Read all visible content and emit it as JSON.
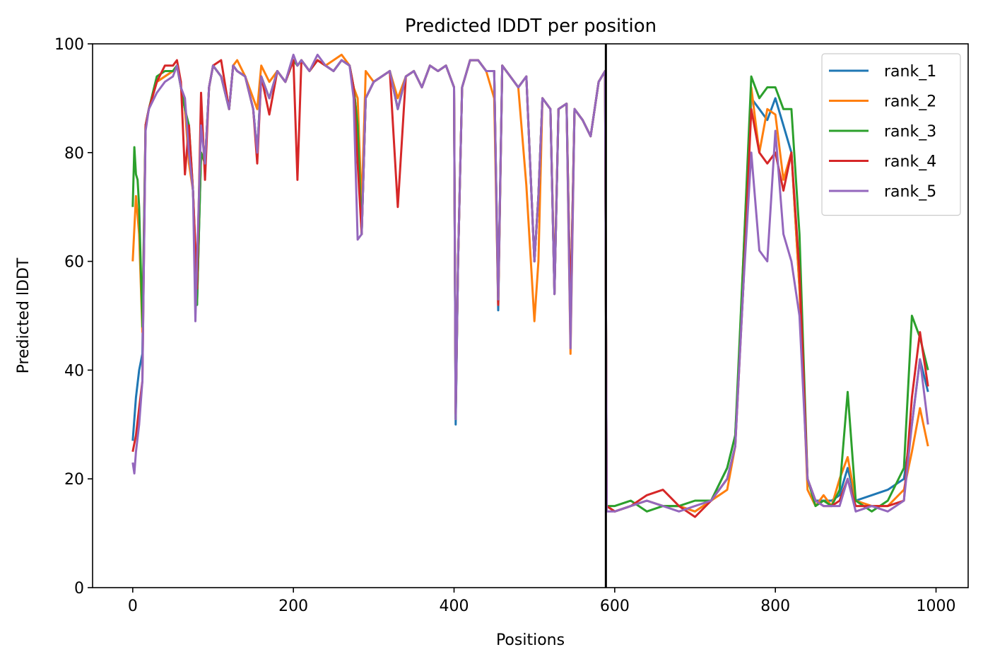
{
  "chart_data": {
    "type": "line",
    "title": "Predicted lDDT per position",
    "xlabel": "Positions",
    "ylabel": "Predicted lDDT",
    "xlim": [
      -50,
      1040
    ],
    "ylim": [
      0,
      100
    ],
    "xticks": [
      0,
      200,
      400,
      600,
      800,
      1000
    ],
    "yticks": [
      0,
      20,
      40,
      60,
      80,
      100
    ],
    "grid": false,
    "legend_position": "top-right",
    "chain_break": 589,
    "chain_break_color": "#000000",
    "series": [
      {
        "name": "rank_1",
        "color": "#1f77b4",
        "x": [
          0,
          4,
          8,
          12,
          16,
          20,
          30,
          40,
          50,
          55,
          60,
          65,
          70,
          75,
          80,
          85,
          90,
          95,
          100,
          110,
          120,
          125,
          130,
          140,
          150,
          155,
          160,
          170,
          180,
          190,
          200,
          205,
          210,
          220,
          230,
          240,
          250,
          260,
          270,
          275,
          280,
          285,
          290,
          300,
          310,
          320,
          330,
          340,
          350,
          360,
          370,
          380,
          390,
          400,
          402,
          405,
          410,
          420,
          430,
          440,
          450,
          455,
          460,
          470,
          480,
          490,
          500,
          505,
          510,
          520,
          525,
          530,
          540,
          545,
          550,
          560,
          570,
          580,
          588,
          590,
          600,
          620,
          640,
          660,
          680,
          700,
          720,
          740,
          750,
          760,
          770,
          780,
          790,
          800,
          810,
          820,
          830,
          840,
          850,
          860,
          870,
          880,
          890,
          900,
          920,
          940,
          960,
          970,
          980,
          990
        ],
        "values": [
          27,
          35,
          40,
          43,
          85,
          88,
          93,
          94,
          95,
          96,
          92,
          88,
          80,
          73,
          52,
          80,
          78,
          92,
          96,
          94,
          88,
          96,
          95,
          94,
          88,
          80,
          94,
          90,
          95,
          93,
          97,
          96,
          97,
          95,
          97,
          96,
          95,
          97,
          96,
          92,
          85,
          65,
          90,
          93,
          94,
          95,
          88,
          94,
          95,
          92,
          96,
          95,
          96,
          92,
          30,
          60,
          92,
          97,
          97,
          95,
          95,
          51,
          96,
          94,
          92,
          94,
          60,
          72,
          90,
          88,
          54,
          88,
          89,
          50,
          88,
          86,
          83,
          93,
          95,
          15,
          14,
          15,
          16,
          15,
          15,
          14,
          16,
          22,
          28,
          55,
          90,
          88,
          86,
          90,
          85,
          80,
          55,
          20,
          16,
          16,
          16,
          17,
          22,
          16,
          17,
          18,
          20,
          30,
          42,
          36
        ]
      },
      {
        "name": "rank_2",
        "color": "#ff7f0e",
        "x": [
          0,
          4,
          8,
          12,
          16,
          20,
          30,
          40,
          50,
          55,
          60,
          65,
          70,
          75,
          80,
          85,
          90,
          95,
          100,
          110,
          120,
          125,
          130,
          140,
          150,
          155,
          160,
          170,
          180,
          190,
          200,
          205,
          210,
          220,
          230,
          240,
          250,
          260,
          270,
          275,
          280,
          285,
          290,
          300,
          310,
          320,
          330,
          340,
          350,
          360,
          370,
          380,
          390,
          400,
          402,
          405,
          410,
          420,
          430,
          440,
          450,
          455,
          460,
          470,
          480,
          490,
          500,
          505,
          510,
          520,
          525,
          530,
          540,
          545,
          550,
          560,
          570,
          580,
          588,
          590,
          600,
          620,
          640,
          660,
          680,
          700,
          720,
          740,
          750,
          760,
          770,
          780,
          790,
          800,
          810,
          820,
          830,
          840,
          850,
          860,
          870,
          880,
          890,
          900,
          920,
          940,
          960,
          970,
          980,
          990
        ],
        "values": [
          60,
          72,
          65,
          47,
          85,
          88,
          93,
          94,
          95,
          96,
          92,
          88,
          78,
          73,
          55,
          80,
          78,
          92,
          96,
          94,
          88,
          96,
          97,
          94,
          90,
          88,
          96,
          93,
          95,
          93,
          97,
          96,
          97,
          95,
          97,
          96,
          97,
          98,
          96,
          92,
          90,
          70,
          95,
          93,
          94,
          95,
          90,
          94,
          95,
          92,
          96,
          95,
          96,
          92,
          32,
          60,
          92,
          97,
          97,
          95,
          90,
          52,
          96,
          94,
          92,
          74,
          49,
          60,
          90,
          88,
          56,
          88,
          89,
          43,
          88,
          86,
          83,
          93,
          95,
          15,
          14,
          15,
          16,
          15,
          15,
          14,
          16,
          18,
          26,
          60,
          92,
          80,
          88,
          87,
          75,
          80,
          55,
          18,
          15,
          17,
          15,
          20,
          24,
          16,
          15,
          15,
          18,
          25,
          33,
          26
        ]
      },
      {
        "name": "rank_3",
        "color": "#2ca02c",
        "x": [
          0,
          2,
          4,
          6,
          8,
          12,
          16,
          20,
          30,
          40,
          50,
          55,
          60,
          65,
          70,
          75,
          80,
          85,
          90,
          95,
          100,
          110,
          120,
          125,
          130,
          140,
          150,
          155,
          160,
          170,
          180,
          190,
          200,
          205,
          210,
          220,
          230,
          240,
          250,
          260,
          270,
          275,
          280,
          285,
          290,
          300,
          310,
          320,
          330,
          340,
          350,
          360,
          370,
          380,
          390,
          400,
          402,
          405,
          410,
          420,
          430,
          440,
          450,
          455,
          460,
          470,
          480,
          490,
          500,
          505,
          510,
          520,
          525,
          530,
          540,
          545,
          550,
          560,
          570,
          580,
          588,
          590,
          600,
          620,
          640,
          660,
          680,
          700,
          720,
          740,
          750,
          760,
          770,
          780,
          790,
          800,
          810,
          820,
          830,
          840,
          850,
          860,
          870,
          880,
          890,
          900,
          920,
          940,
          960,
          970,
          980,
          990
        ],
        "values": [
          70,
          81,
          76,
          75,
          70,
          48,
          85,
          88,
          94,
          95,
          95,
          96,
          92,
          88,
          85,
          73,
          52,
          80,
          78,
          92,
          96,
          94,
          88,
          96,
          95,
          94,
          88,
          80,
          94,
          90,
          95,
          93,
          97,
          96,
          97,
          95,
          97,
          96,
          95,
          97,
          96,
          92,
          85,
          65,
          90,
          93,
          94,
          95,
          88,
          94,
          95,
          92,
          96,
          95,
          96,
          92,
          31,
          60,
          92,
          97,
          97,
          95,
          95,
          53,
          96,
          94,
          92,
          94,
          60,
          72,
          90,
          88,
          54,
          88,
          89,
          50,
          88,
          86,
          83,
          93,
          95,
          15,
          15,
          16,
          14,
          15,
          15,
          16,
          16,
          22,
          28,
          60,
          94,
          90,
          92,
          92,
          88,
          88,
          65,
          20,
          15,
          16,
          15,
          18,
          36,
          16,
          14,
          16,
          22,
          50,
          46,
          40
        ]
      },
      {
        "name": "rank_4",
        "color": "#d62728",
        "x": [
          0,
          4,
          8,
          12,
          16,
          20,
          30,
          40,
          50,
          55,
          60,
          65,
          70,
          75,
          80,
          85,
          90,
          95,
          100,
          110,
          120,
          125,
          130,
          140,
          150,
          155,
          160,
          170,
          180,
          190,
          200,
          205,
          210,
          220,
          230,
          240,
          250,
          260,
          270,
          275,
          280,
          285,
          290,
          300,
          310,
          320,
          330,
          340,
          350,
          360,
          370,
          380,
          390,
          400,
          402,
          405,
          410,
          420,
          430,
          440,
          450,
          455,
          460,
          470,
          480,
          490,
          500,
          505,
          510,
          520,
          525,
          530,
          540,
          545,
          550,
          560,
          570,
          580,
          588,
          590,
          600,
          620,
          640,
          660,
          680,
          700,
          720,
          740,
          750,
          760,
          770,
          780,
          790,
          800,
          810,
          820,
          830,
          840,
          850,
          860,
          870,
          880,
          890,
          900,
          920,
          940,
          960,
          970,
          980,
          990
        ],
        "values": [
          25,
          28,
          33,
          38,
          85,
          88,
          93,
          96,
          96,
          97,
          93,
          76,
          85,
          73,
          55,
          91,
          75,
          92,
          96,
          97,
          88,
          96,
          95,
          94,
          88,
          78,
          94,
          87,
          95,
          93,
          97,
          75,
          97,
          95,
          97,
          96,
          95,
          97,
          96,
          92,
          78,
          65,
          90,
          93,
          94,
          95,
          70,
          94,
          95,
          92,
          96,
          95,
          96,
          92,
          32,
          60,
          92,
          97,
          97,
          95,
          95,
          52,
          96,
          94,
          92,
          94,
          60,
          72,
          90,
          88,
          54,
          88,
          89,
          50,
          88,
          86,
          83,
          93,
          95,
          15,
          14,
          15,
          17,
          18,
          15,
          13,
          16,
          20,
          26,
          55,
          88,
          80,
          78,
          80,
          73,
          80,
          58,
          20,
          16,
          15,
          15,
          16,
          20,
          15,
          15,
          15,
          16,
          35,
          47,
          37
        ]
      },
      {
        "name": "rank_5",
        "color": "#9467bd",
        "x": [
          0,
          2,
          4,
          8,
          12,
          16,
          20,
          30,
          40,
          50,
          55,
          60,
          65,
          70,
          75,
          78,
          80,
          85,
          90,
          95,
          100,
          110,
          120,
          125,
          130,
          140,
          150,
          155,
          160,
          170,
          180,
          190,
          200,
          205,
          210,
          220,
          230,
          240,
          250,
          260,
          270,
          275,
          280,
          285,
          290,
          300,
          310,
          320,
          330,
          340,
          350,
          360,
          370,
          380,
          390,
          400,
          402,
          405,
          410,
          420,
          430,
          440,
          450,
          455,
          460,
          470,
          480,
          490,
          500,
          505,
          510,
          520,
          525,
          530,
          540,
          545,
          550,
          560,
          570,
          580,
          588,
          590,
          600,
          620,
          640,
          660,
          680,
          700,
          720,
          740,
          750,
          760,
          770,
          780,
          790,
          800,
          810,
          820,
          830,
          840,
          850,
          860,
          870,
          880,
          890,
          900,
          920,
          940,
          960,
          970,
          980,
          990
        ],
        "values": [
          23,
          21,
          25,
          30,
          38,
          84,
          88,
          91,
          93,
          94,
          96,
          92,
          90,
          80,
          73,
          49,
          60,
          85,
          78,
          92,
          96,
          94,
          88,
          96,
          95,
          94,
          88,
          80,
          94,
          90,
          95,
          93,
          98,
          96,
          97,
          95,
          98,
          96,
          95,
          97,
          96,
          90,
          64,
          65,
          90,
          93,
          94,
          95,
          88,
          94,
          95,
          92,
          96,
          95,
          96,
          92,
          31,
          60,
          92,
          97,
          97,
          95,
          95,
          53,
          96,
          94,
          92,
          94,
          60,
          72,
          90,
          88,
          54,
          88,
          89,
          44,
          88,
          86,
          83,
          93,
          95,
          14,
          14,
          15,
          16,
          15,
          14,
          15,
          16,
          20,
          26,
          55,
          80,
          62,
          60,
          84,
          65,
          60,
          50,
          20,
          16,
          15,
          15,
          15,
          20,
          14,
          15,
          14,
          16,
          30,
          42,
          30
        ]
      }
    ]
  }
}
